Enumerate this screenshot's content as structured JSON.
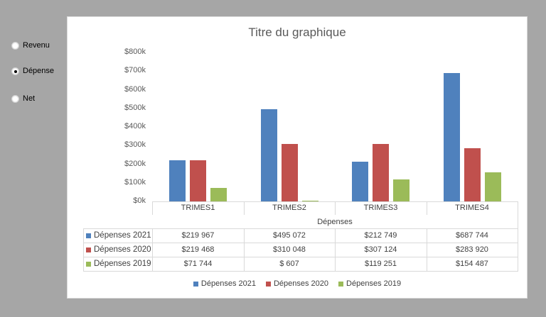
{
  "radios": [
    {
      "label": "Revenu",
      "checked": false
    },
    {
      "label": "Dépense",
      "checked": true
    },
    {
      "label": "Net",
      "checked": false
    }
  ],
  "colors": {
    "s2021": "#4F81BD",
    "s2020": "#C0504D",
    "s2019": "#9BBB59",
    "background": "#A6A6A6"
  },
  "chart_data": {
    "type": "bar",
    "title": "Titre du graphique",
    "xlabel": "Dépenses",
    "ylabel": "",
    "categories": [
      "TRIMES1",
      "TRIMES2",
      "TRIMES3",
      "TRIMES4"
    ],
    "series": [
      {
        "name": "Dépenses 2021",
        "values": [
          219967,
          495072,
          212749,
          687744
        ],
        "labels": [
          "$219 967",
          "$495 072",
          "$212 749",
          "$687 744"
        ]
      },
      {
        "name": "Dépenses 2020",
        "values": [
          219468,
          310048,
          307124,
          283920
        ],
        "labels": [
          "$219 468",
          "$310 048",
          "$307 124",
          "$283 920"
        ]
      },
      {
        "name": "Dépenses 2019",
        "values": [
          71744,
          607,
          119251,
          154487
        ],
        "labels": [
          "$71 744",
          "$ 607",
          "$119 251",
          "$154 487"
        ]
      }
    ],
    "yticks": [
      "$0k",
      "$100k",
      "$200k",
      "$300k",
      "$400k",
      "$500k",
      "$600k",
      "$700k",
      "$800k"
    ],
    "ylim": [
      0,
      800000
    ],
    "grid": false,
    "legend_position": "bottom",
    "data_table": true
  }
}
